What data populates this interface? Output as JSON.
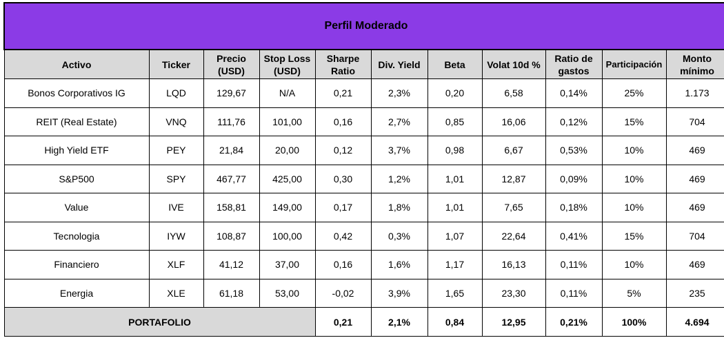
{
  "title": "Perfil Moderado",
  "headers": [
    "Activo",
    "Ticker",
    "Precio (USD)",
    "Stop Loss (USD)",
    "Sharpe Ratio",
    "Div. Yield",
    "Beta",
    "Volat 10d %",
    "Ratio de gastos",
    "Participación",
    "Monto mínimo"
  ],
  "rows": [
    [
      "Bonos Corporativos IG",
      "LQD",
      "129,67",
      "N/A",
      "0,21",
      "2,3%",
      "0,20",
      "6,58",
      "0,14%",
      "25%",
      "1.173"
    ],
    [
      "REIT (Real Estate)",
      "VNQ",
      "111,76",
      "101,00",
      "0,16",
      "2,7%",
      "0,85",
      "16,06",
      "0,12%",
      "15%",
      "704"
    ],
    [
      "High Yield ETF",
      "PEY",
      "21,84",
      "20,00",
      "0,12",
      "3,7%",
      "0,98",
      "6,67",
      "0,53%",
      "10%",
      "469"
    ],
    [
      "S&P500",
      "SPY",
      "467,77",
      "425,00",
      "0,30",
      "1,2%",
      "1,01",
      "12,87",
      "0,09%",
      "10%",
      "469"
    ],
    [
      "Value",
      "IVE",
      "158,81",
      "149,00",
      "0,17",
      "1,8%",
      "1,01",
      "7,65",
      "0,18%",
      "10%",
      "469"
    ],
    [
      "Tecnologia",
      "IYW",
      "108,87",
      "100,00",
      "0,42",
      "0,3%",
      "1,07",
      "22,64",
      "0,41%",
      "15%",
      "704"
    ],
    [
      "Financiero",
      "XLF",
      "41,12",
      "37,00",
      "0,16",
      "1,6%",
      "1,17",
      "16,13",
      "0,11%",
      "10%",
      "469"
    ],
    [
      "Energia",
      "XLE",
      "61,18",
      "53,00",
      "-0,02",
      "3,9%",
      "1,65",
      "23,30",
      "0,11%",
      "5%",
      "235"
    ]
  ],
  "total": {
    "label": "PORTAFOLIO",
    "values": [
      "0,21",
      "2,1%",
      "0,84",
      "12,95",
      "0,21%",
      "100%",
      "4.694"
    ]
  }
}
